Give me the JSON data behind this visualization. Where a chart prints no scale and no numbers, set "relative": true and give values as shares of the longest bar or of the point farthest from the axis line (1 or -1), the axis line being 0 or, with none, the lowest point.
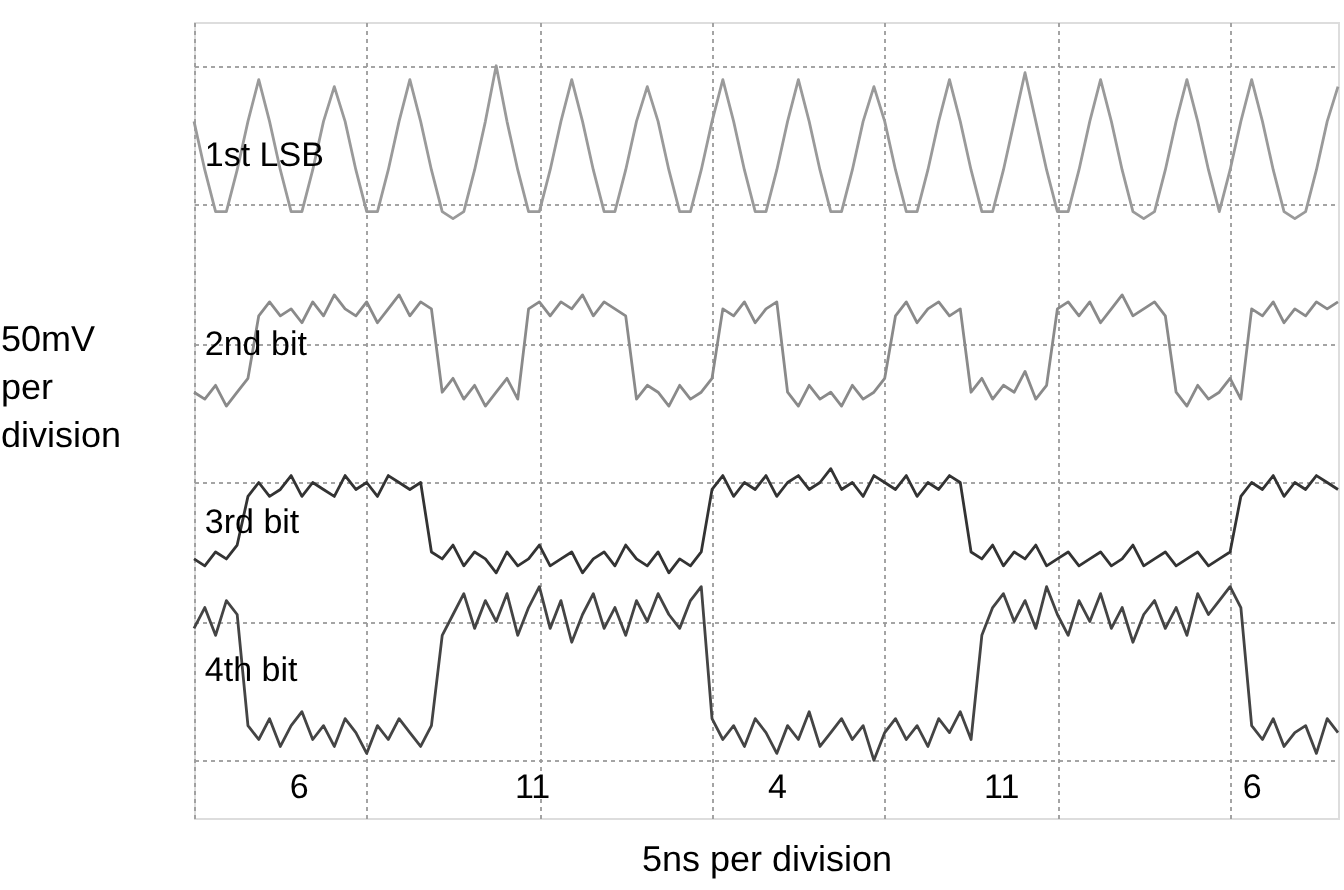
{
  "chart_data": {
    "type": "line",
    "relative": true,
    "xlabel": "5ns per division",
    "ylabel": "50mV per division",
    "grid": true,
    "tick_labels": false,
    "marker": "none",
    "line_style": "solid",
    "categories": [
      null,
      null,
      null,
      null,
      null,
      null,
      null,
      null,
      null,
      null,
      null,
      null,
      null,
      null,
      null,
      null,
      null,
      null,
      null,
      null,
      null,
      null,
      null,
      null,
      null,
      null,
      null,
      null,
      null,
      null,
      null,
      null,
      null,
      null,
      null,
      null,
      null,
      null,
      null,
      null,
      null,
      null,
      null,
      null,
      null,
      null,
      null,
      null,
      null,
      null,
      null,
      null,
      null,
      null,
      null,
      null,
      null,
      null,
      null,
      null,
      null,
      null,
      null,
      null,
      null,
      null,
      null,
      null,
      null,
      null,
      null,
      null,
      null,
      null,
      null,
      null,
      null,
      null,
      null,
      null,
      null,
      null,
      null,
      null,
      null,
      null,
      null,
      null,
      null,
      null,
      null,
      null,
      null,
      null,
      null,
      null,
      null,
      null,
      null,
      null,
      null,
      null,
      null,
      null,
      null,
      null,
      null
    ],
    "series": [
      {
        "name": "1st LSB",
        "color": "#9a9a9a",
        "values": [
          0.92,
          0.85,
          0.79,
          0.79,
          0.85,
          0.92,
          0.98,
          0.92,
          0.85,
          0.79,
          0.79,
          0.85,
          0.92,
          0.97,
          0.92,
          0.85,
          0.79,
          0.79,
          0.85,
          0.92,
          0.98,
          0.92,
          0.85,
          0.79,
          0.78,
          0.79,
          0.85,
          0.92,
          1.0,
          0.92,
          0.85,
          0.79,
          0.79,
          0.85,
          0.92,
          0.98,
          0.92,
          0.85,
          0.79,
          0.79,
          0.85,
          0.92,
          0.97,
          0.92,
          0.85,
          0.79,
          0.79,
          0.85,
          0.92,
          0.98,
          0.92,
          0.85,
          0.79,
          0.79,
          0.85,
          0.92,
          0.98,
          0.92,
          0.85,
          0.79,
          0.79,
          0.85,
          0.92,
          0.97,
          0.92,
          0.85,
          0.79,
          0.79,
          0.85,
          0.92,
          0.98,
          0.92,
          0.85,
          0.79,
          0.79,
          0.85,
          0.92,
          0.99,
          0.92,
          0.85,
          0.79,
          0.79,
          0.85,
          0.92,
          0.98,
          0.92,
          0.85,
          0.79,
          0.78,
          0.79,
          0.85,
          0.92,
          0.98,
          0.92,
          0.85,
          0.79,
          0.85,
          0.92,
          0.98,
          0.92,
          0.85,
          0.79,
          0.78,
          0.79,
          0.85,
          0.92,
          0.97
        ]
      },
      {
        "name": "2nd bit",
        "color": "#8a8a8a",
        "values": [
          0.53,
          0.52,
          0.54,
          0.51,
          0.53,
          0.55,
          0.64,
          0.66,
          0.64,
          0.65,
          0.63,
          0.66,
          0.64,
          0.67,
          0.65,
          0.64,
          0.66,
          0.63,
          0.65,
          0.67,
          0.64,
          0.66,
          0.65,
          0.53,
          0.55,
          0.52,
          0.54,
          0.51,
          0.53,
          0.55,
          0.52,
          0.65,
          0.66,
          0.64,
          0.66,
          0.65,
          0.67,
          0.64,
          0.66,
          0.65,
          0.64,
          0.52,
          0.54,
          0.53,
          0.51,
          0.54,
          0.52,
          0.53,
          0.55,
          0.65,
          0.64,
          0.66,
          0.63,
          0.65,
          0.66,
          0.53,
          0.51,
          0.54,
          0.52,
          0.53,
          0.51,
          0.54,
          0.52,
          0.53,
          0.55,
          0.64,
          0.66,
          0.63,
          0.65,
          0.66,
          0.64,
          0.65,
          0.53,
          0.55,
          0.52,
          0.54,
          0.53,
          0.56,
          0.52,
          0.54,
          0.65,
          0.66,
          0.64,
          0.66,
          0.63,
          0.65,
          0.67,
          0.64,
          0.65,
          0.66,
          0.64,
          0.53,
          0.51,
          0.54,
          0.52,
          0.53,
          0.55,
          0.52,
          0.65,
          0.64,
          0.66,
          0.63,
          0.65,
          0.64,
          0.66,
          0.65,
          0.66
        ]
      },
      {
        "name": "3rd bit",
        "color": "#333333",
        "values": [
          0.29,
          0.28,
          0.3,
          0.29,
          0.31,
          0.38,
          0.4,
          0.38,
          0.39,
          0.41,
          0.38,
          0.4,
          0.39,
          0.38,
          0.41,
          0.39,
          0.4,
          0.38,
          0.41,
          0.4,
          0.39,
          0.4,
          0.3,
          0.29,
          0.31,
          0.28,
          0.3,
          0.29,
          0.27,
          0.3,
          0.28,
          0.29,
          0.31,
          0.28,
          0.29,
          0.3,
          0.27,
          0.29,
          0.3,
          0.28,
          0.31,
          0.29,
          0.28,
          0.3,
          0.27,
          0.29,
          0.28,
          0.3,
          0.39,
          0.41,
          0.38,
          0.4,
          0.39,
          0.41,
          0.38,
          0.4,
          0.41,
          0.39,
          0.4,
          0.42,
          0.39,
          0.4,
          0.38,
          0.41,
          0.4,
          0.39,
          0.41,
          0.38,
          0.4,
          0.39,
          0.41,
          0.4,
          0.3,
          0.29,
          0.31,
          0.28,
          0.3,
          0.29,
          0.31,
          0.28,
          0.29,
          0.3,
          0.28,
          0.29,
          0.3,
          0.28,
          0.29,
          0.31,
          0.28,
          0.29,
          0.3,
          0.28,
          0.29,
          0.3,
          0.28,
          0.29,
          0.3,
          0.38,
          0.4,
          0.39,
          0.41,
          0.38,
          0.4,
          0.39,
          0.41,
          0.4,
          0.39
        ]
      },
      {
        "name": "4th bit",
        "color": "#444444",
        "values": [
          0.19,
          0.22,
          0.18,
          0.23,
          0.21,
          0.05,
          0.03,
          0.06,
          0.02,
          0.05,
          0.07,
          0.03,
          0.05,
          0.02,
          0.06,
          0.04,
          0.01,
          0.05,
          0.03,
          0.06,
          0.04,
          0.02,
          0.05,
          0.18,
          0.21,
          0.24,
          0.19,
          0.23,
          0.2,
          0.24,
          0.18,
          0.22,
          0.25,
          0.19,
          0.23,
          0.17,
          0.21,
          0.24,
          0.19,
          0.22,
          0.18,
          0.23,
          0.2,
          0.24,
          0.21,
          0.19,
          0.23,
          0.25,
          0.06,
          0.03,
          0.05,
          0.02,
          0.06,
          0.04,
          0.01,
          0.05,
          0.03,
          0.07,
          0.02,
          0.04,
          0.06,
          0.03,
          0.05,
          0.0,
          0.04,
          0.06,
          0.03,
          0.05,
          0.02,
          0.06,
          0.04,
          0.07,
          0.03,
          0.18,
          0.22,
          0.24,
          0.2,
          0.23,
          0.19,
          0.25,
          0.21,
          0.18,
          0.23,
          0.2,
          0.24,
          0.19,
          0.22,
          0.17,
          0.21,
          0.23,
          0.19,
          0.22,
          0.18,
          0.24,
          0.21,
          0.23,
          0.25,
          0.22,
          0.05,
          0.03,
          0.06,
          0.02,
          0.04,
          0.05,
          0.01,
          0.06,
          0.04
        ]
      }
    ],
    "annotations": [
      "6",
      "11",
      "4",
      "11",
      "6"
    ]
  }
}
